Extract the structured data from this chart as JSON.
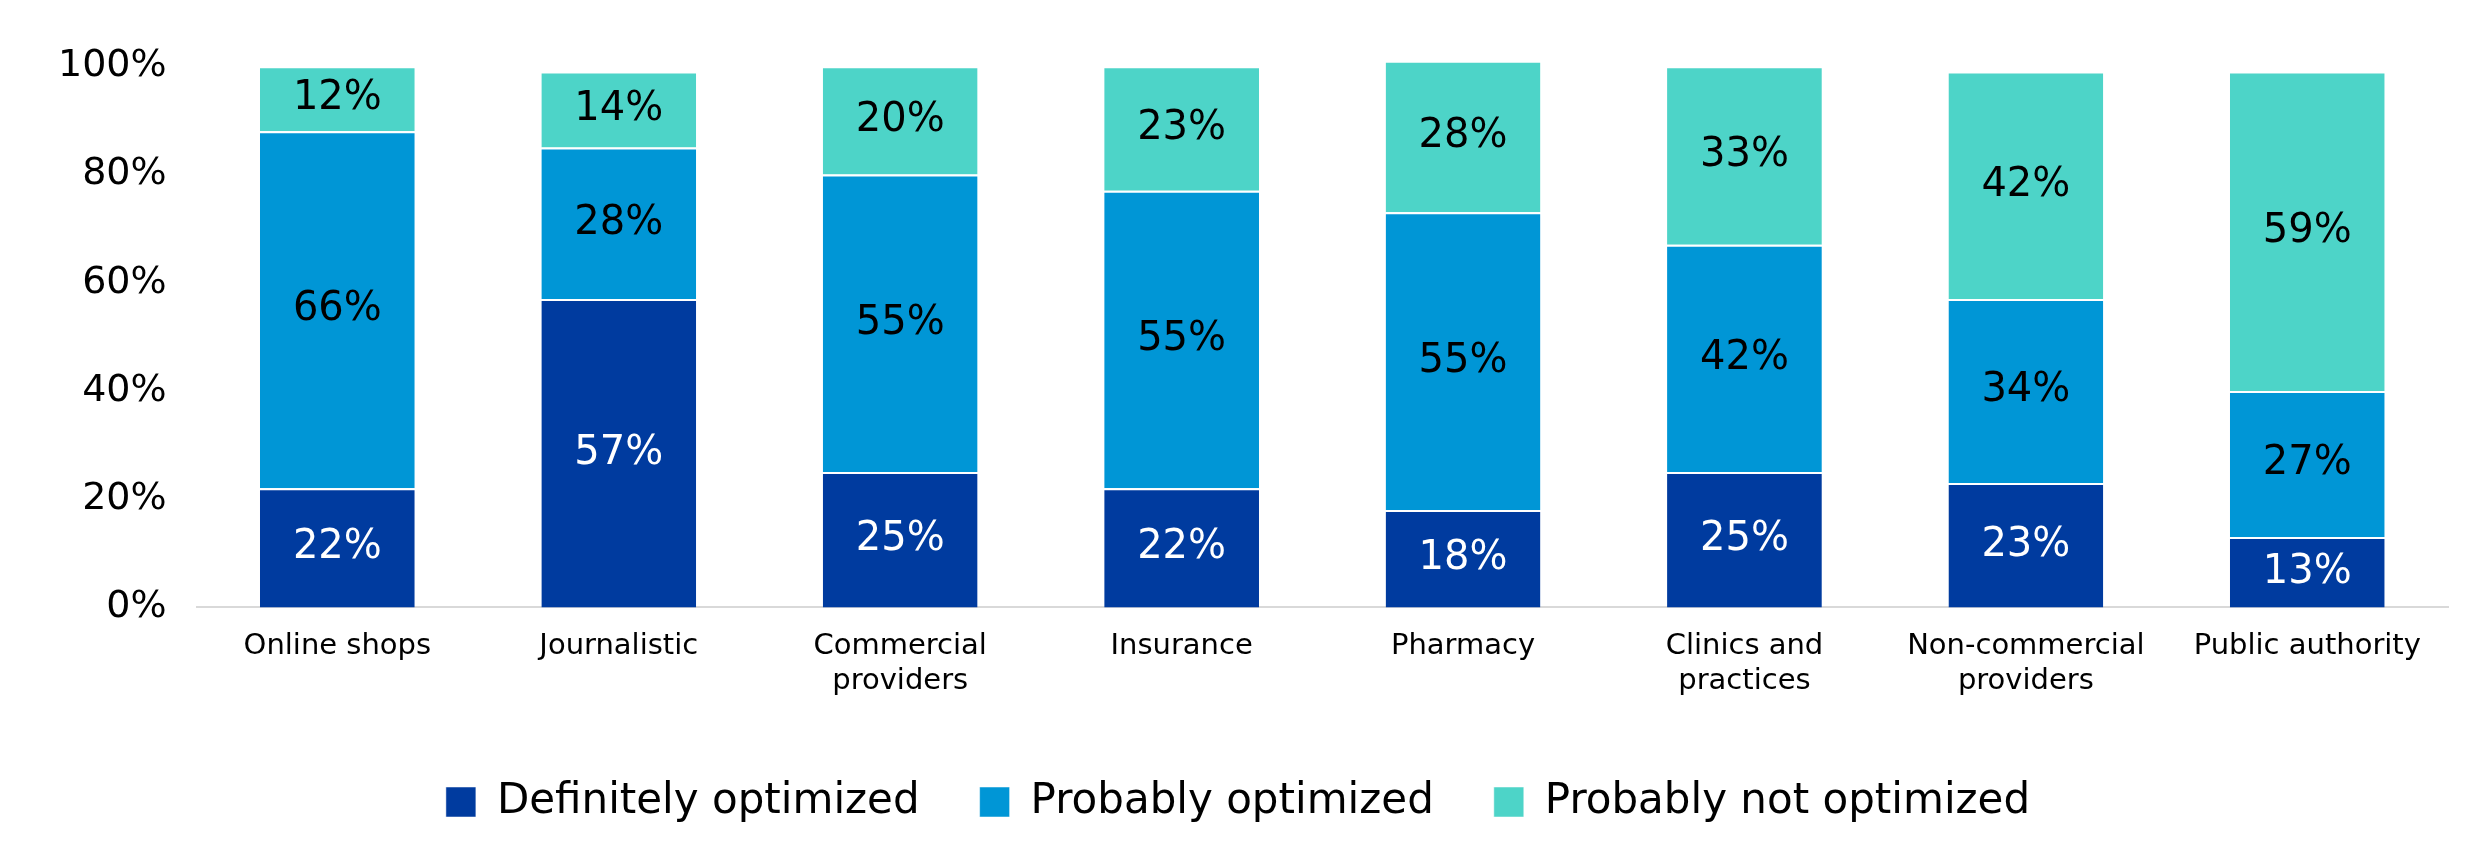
{
  "chart_data": {
    "type": "bar",
    "stacked": true,
    "categories": [
      "Online shops",
      "Journalistic",
      "Commercial providers",
      "Insurance",
      "Pharmacy",
      "Clinics and practices",
      "Non-commercial providers",
      "Public authority"
    ],
    "series": [
      {
        "name": "Definitely optimized",
        "color": "#003b9f",
        "values": [
          22,
          57,
          25,
          22,
          18,
          25,
          23,
          13
        ],
        "value_labels": [
          "22%",
          "57%",
          "25%",
          "22%",
          "18%",
          "25%",
          "23%",
          "13%"
        ]
      },
      {
        "name": "Probably optimized",
        "color": "#0096d6",
        "values": [
          66,
          28,
          55,
          55,
          55,
          42,
          34,
          27
        ],
        "value_labels": [
          "66%",
          "28%",
          "55%",
          "55%",
          "55%",
          "42%",
          "34%",
          "27%"
        ]
      },
      {
        "name": "Probably not optimized",
        "color": "#4dd4c8",
        "values": [
          12,
          14,
          20,
          23,
          28,
          33,
          42,
          59
        ],
        "value_labels": [
          "12%",
          "14%",
          "20%",
          "23%",
          "28%",
          "33%",
          "42%",
          "59%"
        ]
      }
    ],
    "ylim": [
      0,
      101
    ],
    "yticks": [
      {
        "value": 0,
        "label": "0%"
      },
      {
        "value": 20,
        "label": "20%"
      },
      {
        "value": 40,
        "label": "40%"
      },
      {
        "value": 60,
        "label": "60%"
      },
      {
        "value": 80,
        "label": "80%"
      },
      {
        "value": 100,
        "label": "100%"
      }
    ],
    "grid": false,
    "legend": "bottom"
  }
}
